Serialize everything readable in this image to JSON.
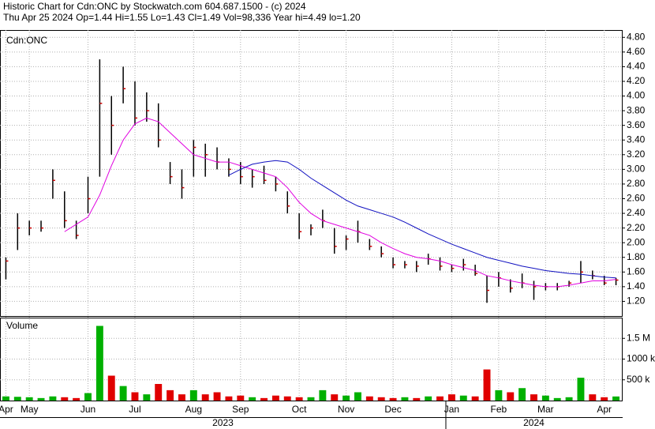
{
  "header": {
    "line1": "Historic Chart for Cdn:ONC by Stockwatch.com 604.687.1500 - (c) 2024",
    "line2": "Thu Apr 25 2024  Op=1.44  Hi=1.55  Lo=1.43  Cl=1.49  Vol=98,336  Year hi=4.49  lo=1.20"
  },
  "chart_data": [
    {
      "type": "hlc",
      "title": "Cdn:ONC",
      "grid": true,
      "bar_color": "#000000",
      "close_color": "#cc0000",
      "categories": [
        "Apr",
        null,
        "May",
        null,
        null,
        null,
        null,
        "Jun",
        null,
        null,
        null,
        "Jul",
        null,
        null,
        null,
        null,
        "Aug",
        null,
        null,
        null,
        "Sep",
        null,
        null,
        null,
        null,
        "Oct",
        null,
        null,
        null,
        "Nov",
        null,
        null,
        null,
        "Dec",
        null,
        null,
        null,
        null,
        "Jan",
        null,
        null,
        null,
        "Feb",
        null,
        null,
        null,
        "Mar",
        null,
        null,
        null,
        null,
        "Apr",
        null
      ],
      "high": [
        1.8,
        2.4,
        2.3,
        2.3,
        3.0,
        2.7,
        2.3,
        2.9,
        4.5,
        4.0,
        4.4,
        4.2,
        4.05,
        3.9,
        3.1,
        3.0,
        3.4,
        3.35,
        3.3,
        3.15,
        3.1,
        3.0,
        3.05,
        2.9,
        2.7,
        2.4,
        2.25,
        2.45,
        2.2,
        2.1,
        2.3,
        2.05,
        1.95,
        1.8,
        1.75,
        1.75,
        1.85,
        1.8,
        1.7,
        1.78,
        1.7,
        1.55,
        1.6,
        1.5,
        1.58,
        1.48,
        1.45,
        1.45,
        1.48,
        1.75,
        1.62,
        1.55,
        1.52
      ],
      "low": [
        1.5,
        1.9,
        2.1,
        2.15,
        2.6,
        2.2,
        2.05,
        2.4,
        2.9,
        3.2,
        3.9,
        3.6,
        3.65,
        3.3,
        2.8,
        2.6,
        2.9,
        2.9,
        3.0,
        2.9,
        2.8,
        2.75,
        2.8,
        2.7,
        2.4,
        2.05,
        2.1,
        2.2,
        1.85,
        1.9,
        2.0,
        1.9,
        1.8,
        1.65,
        1.65,
        1.6,
        1.7,
        1.62,
        1.6,
        1.62,
        1.55,
        1.18,
        1.4,
        1.32,
        1.38,
        1.22,
        1.35,
        1.35,
        1.4,
        1.45,
        1.5,
        1.42,
        1.42
      ],
      "close": [
        1.75,
        2.2,
        2.2,
        2.2,
        2.85,
        2.3,
        2.1,
        2.6,
        3.9,
        3.6,
        4.1,
        3.7,
        3.8,
        3.4,
        2.9,
        2.75,
        3.3,
        3.2,
        3.1,
        3.0,
        2.9,
        2.9,
        2.85,
        2.8,
        2.5,
        2.15,
        2.2,
        2.3,
        1.95,
        2.05,
        2.15,
        1.95,
        1.85,
        1.7,
        1.7,
        1.68,
        1.78,
        1.68,
        1.65,
        1.7,
        1.58,
        1.35,
        1.52,
        1.38,
        1.45,
        1.4,
        1.4,
        1.4,
        1.45,
        1.6,
        1.55,
        1.45,
        1.49
      ],
      "ma_lines": [
        {
          "color": "#e000e0",
          "values": [
            null,
            null,
            null,
            null,
            null,
            2.15,
            2.25,
            2.35,
            2.65,
            3.05,
            3.4,
            3.62,
            3.7,
            3.65,
            3.5,
            3.35,
            3.2,
            3.15,
            3.1,
            3.1,
            3.05,
            3.0,
            2.95,
            2.9,
            2.75,
            2.55,
            2.4,
            2.3,
            2.25,
            2.2,
            2.15,
            2.1,
            2.0,
            1.92,
            1.85,
            1.8,
            1.78,
            1.75,
            1.7,
            1.66,
            1.62,
            1.55,
            1.52,
            1.48,
            1.45,
            1.42,
            1.4,
            1.4,
            1.42,
            1.45,
            1.48,
            1.48,
            1.5
          ]
        },
        {
          "color": "#1010c0",
          "values": [
            null,
            null,
            null,
            null,
            null,
            null,
            null,
            null,
            null,
            null,
            null,
            null,
            null,
            null,
            null,
            null,
            null,
            null,
            null,
            2.92,
            3.0,
            3.07,
            3.1,
            3.12,
            3.1,
            3.0,
            2.88,
            2.78,
            2.68,
            2.58,
            2.5,
            2.45,
            2.4,
            2.35,
            2.28,
            2.2,
            2.12,
            2.05,
            1.98,
            1.92,
            1.86,
            1.8,
            1.76,
            1.72,
            1.68,
            1.65,
            1.62,
            1.6,
            1.58,
            1.57,
            1.55,
            1.53,
            1.52
          ]
        }
      ],
      "ylim": [
        1.0,
        4.9
      ],
      "yticks": [
        {
          "value": 1.2,
          "label": "1.20"
        },
        {
          "value": 1.4,
          "label": "1.40"
        },
        {
          "value": 1.6,
          "label": "1.60"
        },
        {
          "value": 1.8,
          "label": "1.80"
        },
        {
          "value": 2.0,
          "label": "2.00"
        },
        {
          "value": 2.2,
          "label": "2.20"
        },
        {
          "value": 2.4,
          "label": "2.40"
        },
        {
          "value": 2.6,
          "label": "2.60"
        },
        {
          "value": 2.8,
          "label": "2.80"
        },
        {
          "value": 3.0,
          "label": "3.00"
        },
        {
          "value": 3.2,
          "label": "3.20"
        },
        {
          "value": 3.4,
          "label": "3.40"
        },
        {
          "value": 3.6,
          "label": "3.60"
        },
        {
          "value": 3.8,
          "label": "3.80"
        },
        {
          "value": 4.0,
          "label": "4.00"
        },
        {
          "value": 4.2,
          "label": "4.20"
        },
        {
          "value": 4.4,
          "label": "4.40"
        },
        {
          "value": 4.6,
          "label": "4.60"
        },
        {
          "value": 4.8,
          "label": "4.80"
        }
      ]
    },
    {
      "type": "volume",
      "title": "Volume",
      "grid": true,
      "up_color": "#00b000",
      "down_color": "#e00000",
      "values": [
        100000,
        90000,
        80000,
        60000,
        100000,
        80000,
        60000,
        180000,
        1800000,
        600000,
        350000,
        200000,
        150000,
        400000,
        250000,
        150000,
        250000,
        150000,
        200000,
        100000,
        120000,
        80000,
        60000,
        120000,
        100000,
        80000,
        80000,
        250000,
        150000,
        120000,
        200000,
        100000,
        80000,
        60000,
        80000,
        60000,
        100000,
        100000,
        150000,
        120000,
        100000,
        750000,
        250000,
        200000,
        300000,
        150000,
        120000,
        60000,
        80000,
        550000,
        150000,
        80000,
        98336
      ],
      "ylim": [
        0,
        2000000
      ],
      "yticks": [
        {
          "value": 500000,
          "label": "500 k"
        },
        {
          "value": 1000000,
          "label": "1000 k"
        },
        {
          "value": 1500000,
          "label": "1.5 M"
        }
      ],
      "years": [
        "2023",
        "2024"
      ]
    }
  ]
}
